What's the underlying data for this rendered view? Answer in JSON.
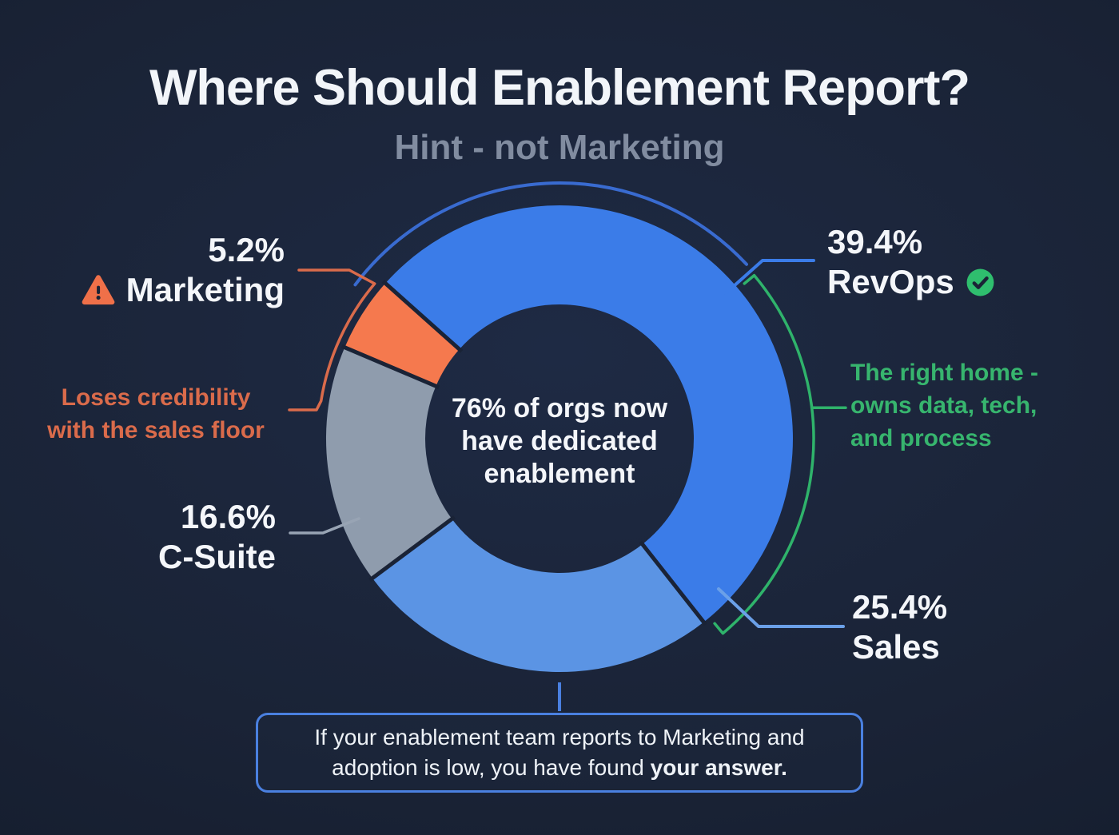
{
  "title": "Where Should Enablement Report?",
  "subtitle": "Hint - not Marketing",
  "chart_data": {
    "type": "pie",
    "style": "donut",
    "legend_position": "around-callouts",
    "center_label": {
      "line1": "76% of orgs now",
      "line2": "have dedicated",
      "line3": "enablement"
    },
    "segments": [
      {
        "label": "RevOps",
        "pct_text": "39.4%",
        "value": 39.4,
        "color": "#3b7ce8",
        "icon": "check-circle",
        "annotation": {
          "line1": "The right home -",
          "line2": "owns data, tech,",
          "line3": "and process"
        }
      },
      {
        "label": "Sales",
        "pct_text": "25.4%",
        "value": 25.4,
        "color": "#5b94e4"
      },
      {
        "label": "C-Suite",
        "pct_text": "16.6%",
        "value": 16.6,
        "color": "#8f9cad"
      },
      {
        "label": "Marketing",
        "pct_text": "5.2%",
        "value": 5.2,
        "color": "#f5794e",
        "icon": "warning-triangle",
        "annotation": {
          "line1": "Loses credibility",
          "line2": "with the sales floor"
        }
      },
      {
        "label": "",
        "pct_text": "",
        "value": 13.4,
        "color": "#3b7ce8",
        "unlabeled": true
      }
    ]
  },
  "callout": {
    "line1": "If your enablement team reports to Marketing and",
    "line2_regular": "adoption is low, you have found ",
    "line2_bold": "your answer."
  },
  "colors": {
    "background": "#1a2336",
    "accent_blue": "#3b7ce8",
    "light_blue": "#5b94e4",
    "gray": "#8f9cad",
    "orange": "#f5794e",
    "green": "#2fbe6e",
    "green_text": "#37b56e",
    "orange_text": "#da6b4b",
    "title_text": "#f2f5f9",
    "subtitle_text": "#818ca0",
    "connector_blue": "#3f74d9",
    "box_border": "#4a80e0"
  }
}
